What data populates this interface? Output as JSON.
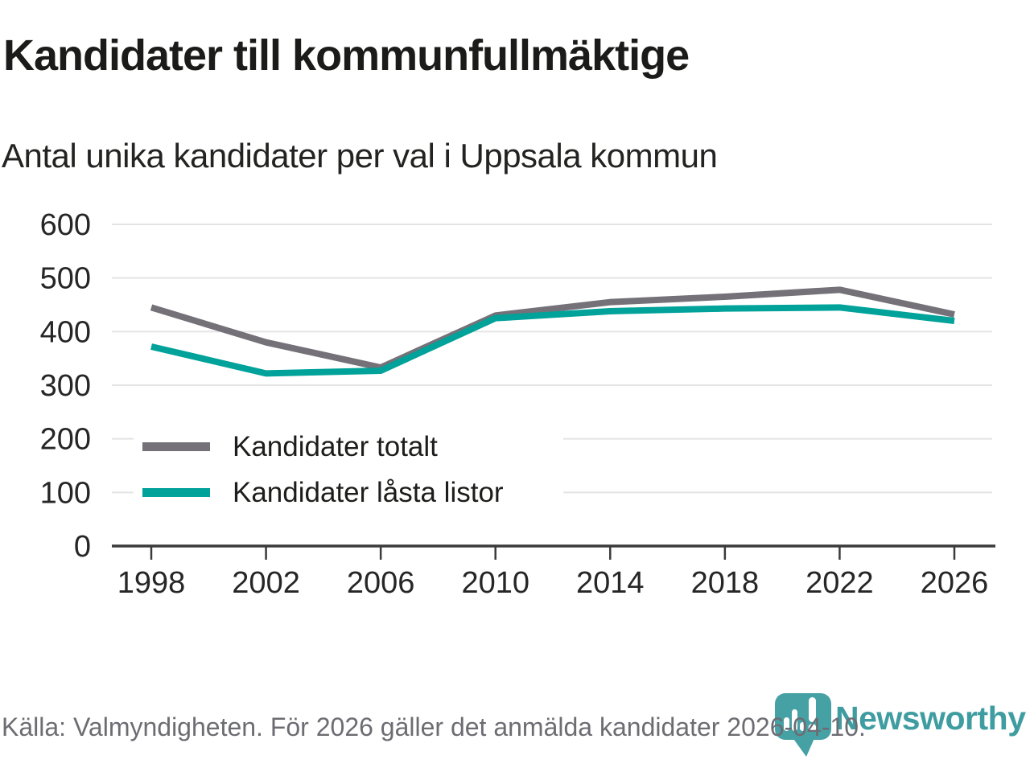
{
  "header": {
    "title": "Kandidater till kommunfullmäktige",
    "subtitle": "Antal unika kandidater per val i Uppsala kommun"
  },
  "chart_data": {
    "type": "line",
    "title": "Kandidater till kommunfullmäktige",
    "subtitle": "Antal unika kandidater per val i Uppsala kommun",
    "x": [
      1998,
      2002,
      2006,
      2010,
      2014,
      2018,
      2022,
      2026
    ],
    "series": [
      {
        "name": "Kandidater totalt",
        "color": "#757178",
        "values": [
          445,
          380,
          333,
          430,
          455,
          465,
          478,
          432
        ]
      },
      {
        "name": "Kandidater låsta listor",
        "color": "#00a29a",
        "values": [
          372,
          322,
          327,
          425,
          438,
          443,
          445,
          420
        ]
      }
    ],
    "xlabel": "",
    "ylabel": "",
    "ylim": [
      0,
      600
    ],
    "yticks": [
      0,
      100,
      200,
      300,
      400,
      500,
      600
    ],
    "grid": true,
    "legend_position": "inside-lower-left"
  },
  "footer": {
    "source": "Källa: Valmyndigheten. För 2026 gäller det anmälda kandidater 2026-04-10.",
    "brand": "Newsworthy"
  },
  "colors": {
    "grid": "#e4e4e4",
    "axis": "#3a3a3a",
    "brand_icon_teal": "#46a1a5",
    "wordmark_teal": "#3f9da1"
  }
}
